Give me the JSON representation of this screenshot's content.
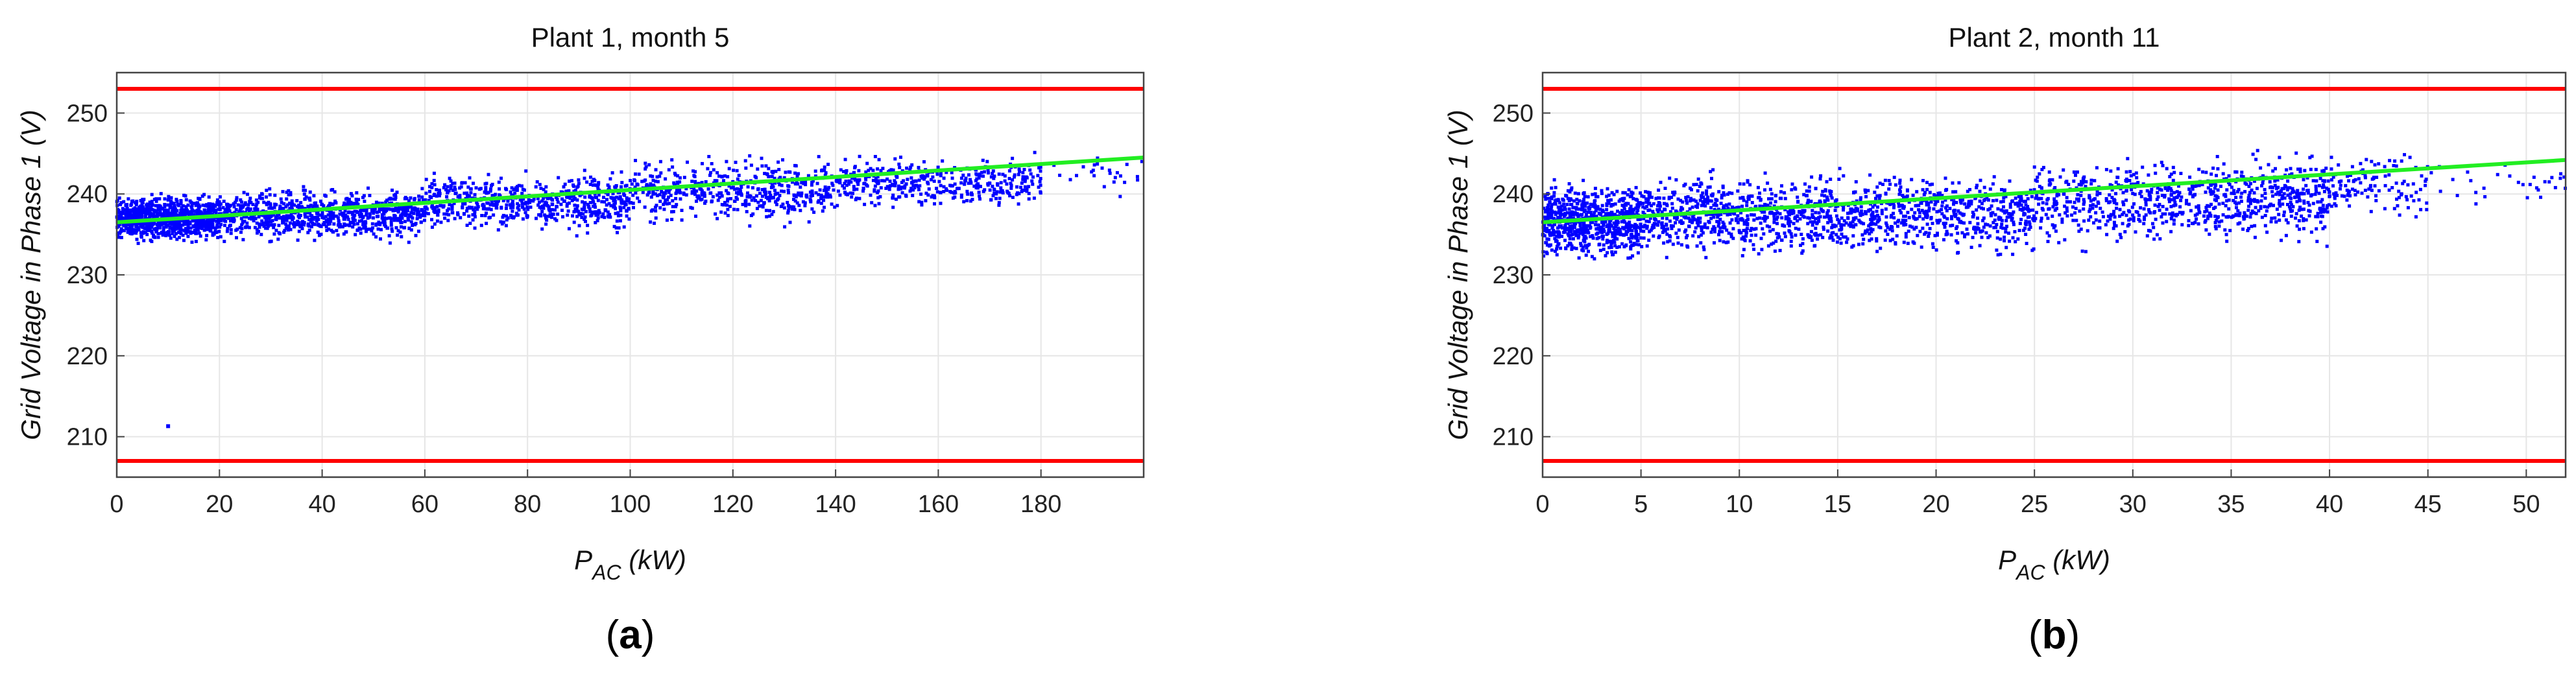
{
  "figure": {
    "panel_labels": [
      "a",
      "b"
    ]
  },
  "colors": {
    "points": "#0000ff",
    "fit_line": "#22ee22",
    "limit_lines": "#ff0000",
    "grid": "#e6e6e6",
    "axes": "#444444"
  },
  "chart_data": [
    {
      "type": "scatter",
      "title": "Plant 1, month 5",
      "xlabel_main": "P",
      "xlabel_sub": "AC",
      "xlabel_unit": " (kW)",
      "ylabel": "Grid Voltage in Phase 1 (V)",
      "xlim": [
        0,
        200
      ],
      "ylim": [
        205,
        255
      ],
      "xticks": [
        0,
        20,
        40,
        60,
        80,
        100,
        120,
        140,
        160,
        180
      ],
      "yticks": [
        210,
        220,
        230,
        240,
        250
      ],
      "grid": true,
      "limit_lines": [
        253,
        207
      ],
      "fit_line": {
        "x": [
          0,
          200
        ],
        "y": [
          236.5,
          244.5
        ]
      },
      "point_cloud": [
        {
          "x0": 0,
          "x1": 20,
          "y_low": 233.5,
          "y_high": 240.5,
          "count": 900
        },
        {
          "x0": 20,
          "x1": 60,
          "y_low": 233.5,
          "y_high": 241.5,
          "count": 800
        },
        {
          "x0": 60,
          "x1": 100,
          "y_low": 234.5,
          "y_high": 243.5,
          "count": 600
        },
        {
          "x0": 100,
          "x1": 140,
          "y_low": 235.5,
          "y_high": 245.5,
          "count": 500
        },
        {
          "x0": 140,
          "x1": 180,
          "y_low": 237.5,
          "y_high": 245.5,
          "count": 400
        },
        {
          "x0": 180,
          "x1": 200,
          "y_low": 239.5,
          "y_high": 245.5,
          "count": 25
        }
      ],
      "outliers": [
        {
          "x": 10,
          "y": 211.3
        }
      ]
    },
    {
      "type": "scatter",
      "title": "Plant 2, month 11",
      "xlabel_main": "P",
      "xlabel_sub": "AC",
      "xlabel_unit": " (kW)",
      "ylabel": "Grid Voltage in Phase 1 (V)",
      "xlim": [
        0,
        52
      ],
      "ylim": [
        205,
        255
      ],
      "xticks": [
        0,
        5,
        10,
        15,
        20,
        25,
        30,
        35,
        40,
        45,
        50
      ],
      "yticks": [
        210,
        220,
        230,
        240,
        250
      ],
      "grid": true,
      "limit_lines": [
        253,
        207
      ],
      "fit_line": {
        "x": [
          0,
          52
        ],
        "y": [
          236.5,
          244.2
        ]
      },
      "point_cloud": [
        {
          "x0": 0,
          "x1": 5,
          "y_low": 230.5,
          "y_high": 242.5,
          "count": 700
        },
        {
          "x0": 5,
          "x1": 15,
          "y_low": 231.5,
          "y_high": 243.5,
          "count": 700
        },
        {
          "x0": 15,
          "x1": 25,
          "y_low": 231.5,
          "y_high": 243.5,
          "count": 600
        },
        {
          "x0": 25,
          "x1": 35,
          "y_low": 232.5,
          "y_high": 245.5,
          "count": 500
        },
        {
          "x0": 35,
          "x1": 40,
          "y_low": 233.0,
          "y_high": 246.0,
          "count": 300
        },
        {
          "x0": 40,
          "x1": 45,
          "y_low": 236.0,
          "y_high": 246.0,
          "count": 120
        },
        {
          "x0": 45,
          "x1": 52,
          "y_low": 237.0,
          "y_high": 245.0,
          "count": 30
        }
      ],
      "outliers": []
    }
  ]
}
